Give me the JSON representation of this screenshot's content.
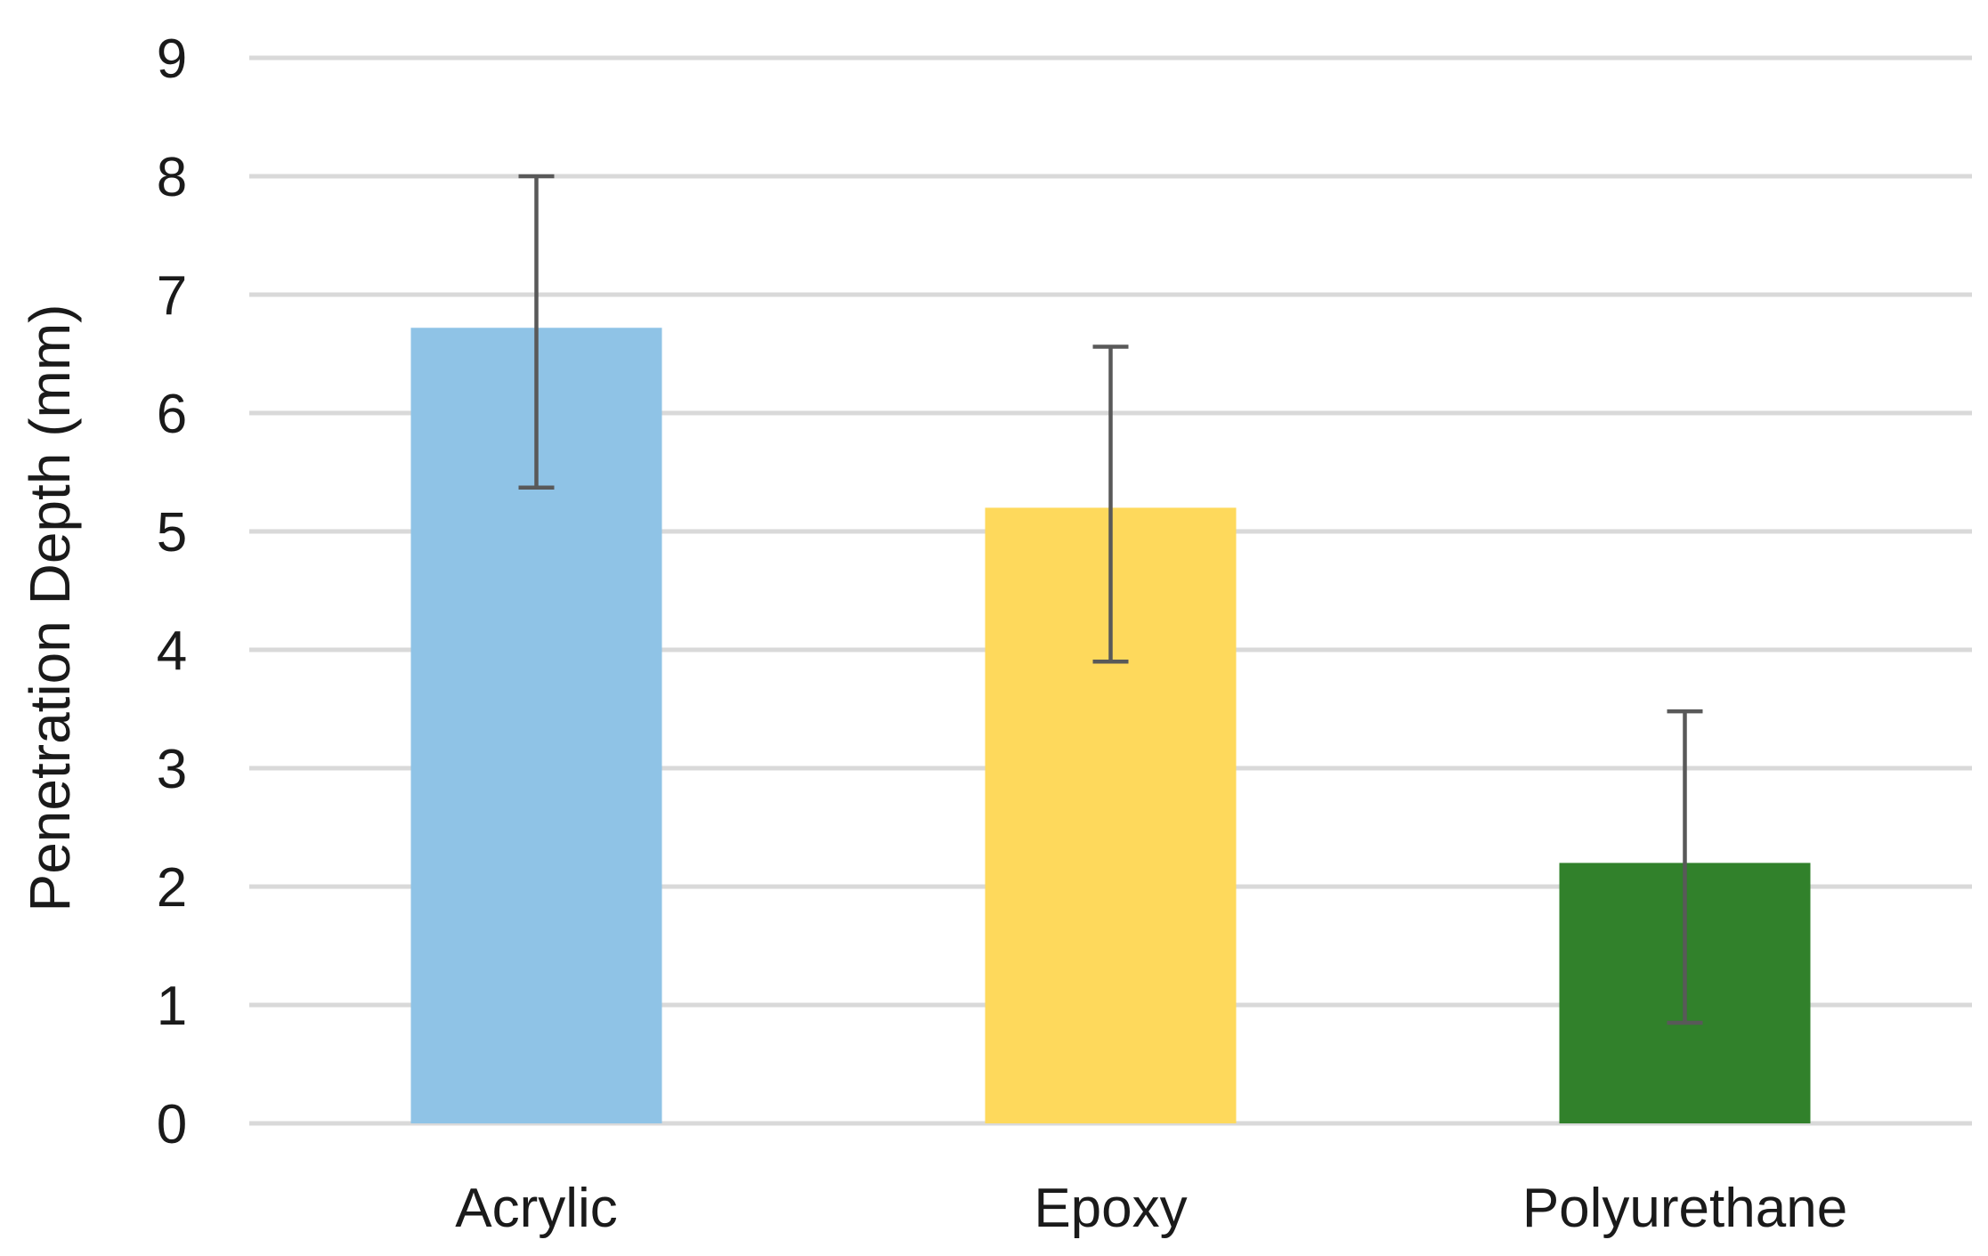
{
  "chart_data": {
    "type": "bar",
    "title": "",
    "xlabel": "",
    "ylabel": "Penetration Depth (mm)",
    "ylim": [
      0,
      9
    ],
    "yticks": [
      0,
      1,
      2,
      3,
      4,
      5,
      6,
      7,
      8,
      9
    ],
    "grid": true,
    "legend": "none",
    "categories": [
      "Acrylic",
      "Epoxy",
      "Polyurethane"
    ],
    "values": [
      6.72,
      5.2,
      2.2
    ],
    "error": [
      {
        "low": 5.37,
        "high": 8.0
      },
      {
        "low": 3.9,
        "high": 6.56
      },
      {
        "low": 0.85,
        "high": 3.48
      }
    ],
    "colors": [
      "#8fc3e6",
      "#fed95c",
      "#31812b"
    ],
    "grid_color": "#d9d9d9",
    "error_color": "#595959"
  }
}
